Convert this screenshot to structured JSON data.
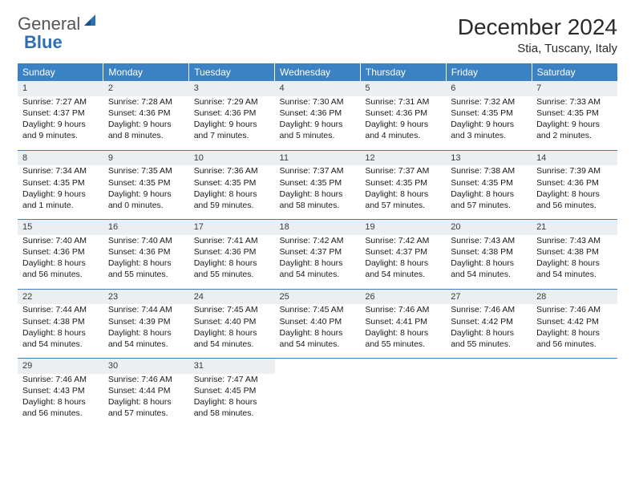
{
  "logo": {
    "text_gray": "General",
    "text_blue": "Blue"
  },
  "title": "December 2024",
  "location": "Stia, Tuscany, Italy",
  "colors": {
    "header_bg": "#3b82c4",
    "header_fg": "#ffffff",
    "daynum_bg": "#eceff1",
    "rule": "#3b82c4",
    "logo_gray": "#555555",
    "logo_blue": "#2e6fb4"
  },
  "font": {
    "body_size_pt": 10.5,
    "title_size_pt": 28
  },
  "day_headers": [
    "Sunday",
    "Monday",
    "Tuesday",
    "Wednesday",
    "Thursday",
    "Friday",
    "Saturday"
  ],
  "weeks": [
    [
      {
        "num": "1",
        "sunrise": "Sunrise: 7:27 AM",
        "sunset": "Sunset: 4:37 PM",
        "daylight": "Daylight: 9 hours and 9 minutes."
      },
      {
        "num": "2",
        "sunrise": "Sunrise: 7:28 AM",
        "sunset": "Sunset: 4:36 PM",
        "daylight": "Daylight: 9 hours and 8 minutes."
      },
      {
        "num": "3",
        "sunrise": "Sunrise: 7:29 AM",
        "sunset": "Sunset: 4:36 PM",
        "daylight": "Daylight: 9 hours and 7 minutes."
      },
      {
        "num": "4",
        "sunrise": "Sunrise: 7:30 AM",
        "sunset": "Sunset: 4:36 PM",
        "daylight": "Daylight: 9 hours and 5 minutes."
      },
      {
        "num": "5",
        "sunrise": "Sunrise: 7:31 AM",
        "sunset": "Sunset: 4:36 PM",
        "daylight": "Daylight: 9 hours and 4 minutes."
      },
      {
        "num": "6",
        "sunrise": "Sunrise: 7:32 AM",
        "sunset": "Sunset: 4:35 PM",
        "daylight": "Daylight: 9 hours and 3 minutes."
      },
      {
        "num": "7",
        "sunrise": "Sunrise: 7:33 AM",
        "sunset": "Sunset: 4:35 PM",
        "daylight": "Daylight: 9 hours and 2 minutes."
      }
    ],
    [
      {
        "num": "8",
        "sunrise": "Sunrise: 7:34 AM",
        "sunset": "Sunset: 4:35 PM",
        "daylight": "Daylight: 9 hours and 1 minute."
      },
      {
        "num": "9",
        "sunrise": "Sunrise: 7:35 AM",
        "sunset": "Sunset: 4:35 PM",
        "daylight": "Daylight: 9 hours and 0 minutes."
      },
      {
        "num": "10",
        "sunrise": "Sunrise: 7:36 AM",
        "sunset": "Sunset: 4:35 PM",
        "daylight": "Daylight: 8 hours and 59 minutes."
      },
      {
        "num": "11",
        "sunrise": "Sunrise: 7:37 AM",
        "sunset": "Sunset: 4:35 PM",
        "daylight": "Daylight: 8 hours and 58 minutes."
      },
      {
        "num": "12",
        "sunrise": "Sunrise: 7:37 AM",
        "sunset": "Sunset: 4:35 PM",
        "daylight": "Daylight: 8 hours and 57 minutes."
      },
      {
        "num": "13",
        "sunrise": "Sunrise: 7:38 AM",
        "sunset": "Sunset: 4:35 PM",
        "daylight": "Daylight: 8 hours and 57 minutes."
      },
      {
        "num": "14",
        "sunrise": "Sunrise: 7:39 AM",
        "sunset": "Sunset: 4:36 PM",
        "daylight": "Daylight: 8 hours and 56 minutes."
      }
    ],
    [
      {
        "num": "15",
        "sunrise": "Sunrise: 7:40 AM",
        "sunset": "Sunset: 4:36 PM",
        "daylight": "Daylight: 8 hours and 56 minutes."
      },
      {
        "num": "16",
        "sunrise": "Sunrise: 7:40 AM",
        "sunset": "Sunset: 4:36 PM",
        "daylight": "Daylight: 8 hours and 55 minutes."
      },
      {
        "num": "17",
        "sunrise": "Sunrise: 7:41 AM",
        "sunset": "Sunset: 4:36 PM",
        "daylight": "Daylight: 8 hours and 55 minutes."
      },
      {
        "num": "18",
        "sunrise": "Sunrise: 7:42 AM",
        "sunset": "Sunset: 4:37 PM",
        "daylight": "Daylight: 8 hours and 54 minutes."
      },
      {
        "num": "19",
        "sunrise": "Sunrise: 7:42 AM",
        "sunset": "Sunset: 4:37 PM",
        "daylight": "Daylight: 8 hours and 54 minutes."
      },
      {
        "num": "20",
        "sunrise": "Sunrise: 7:43 AM",
        "sunset": "Sunset: 4:38 PM",
        "daylight": "Daylight: 8 hours and 54 minutes."
      },
      {
        "num": "21",
        "sunrise": "Sunrise: 7:43 AM",
        "sunset": "Sunset: 4:38 PM",
        "daylight": "Daylight: 8 hours and 54 minutes."
      }
    ],
    [
      {
        "num": "22",
        "sunrise": "Sunrise: 7:44 AM",
        "sunset": "Sunset: 4:38 PM",
        "daylight": "Daylight: 8 hours and 54 minutes."
      },
      {
        "num": "23",
        "sunrise": "Sunrise: 7:44 AM",
        "sunset": "Sunset: 4:39 PM",
        "daylight": "Daylight: 8 hours and 54 minutes."
      },
      {
        "num": "24",
        "sunrise": "Sunrise: 7:45 AM",
        "sunset": "Sunset: 4:40 PM",
        "daylight": "Daylight: 8 hours and 54 minutes."
      },
      {
        "num": "25",
        "sunrise": "Sunrise: 7:45 AM",
        "sunset": "Sunset: 4:40 PM",
        "daylight": "Daylight: 8 hours and 54 minutes."
      },
      {
        "num": "26",
        "sunrise": "Sunrise: 7:46 AM",
        "sunset": "Sunset: 4:41 PM",
        "daylight": "Daylight: 8 hours and 55 minutes."
      },
      {
        "num": "27",
        "sunrise": "Sunrise: 7:46 AM",
        "sunset": "Sunset: 4:42 PM",
        "daylight": "Daylight: 8 hours and 55 minutes."
      },
      {
        "num": "28",
        "sunrise": "Sunrise: 7:46 AM",
        "sunset": "Sunset: 4:42 PM",
        "daylight": "Daylight: 8 hours and 56 minutes."
      }
    ],
    [
      {
        "num": "29",
        "sunrise": "Sunrise: 7:46 AM",
        "sunset": "Sunset: 4:43 PM",
        "daylight": "Daylight: 8 hours and 56 minutes."
      },
      {
        "num": "30",
        "sunrise": "Sunrise: 7:46 AM",
        "sunset": "Sunset: 4:44 PM",
        "daylight": "Daylight: 8 hours and 57 minutes."
      },
      {
        "num": "31",
        "sunrise": "Sunrise: 7:47 AM",
        "sunset": "Sunset: 4:45 PM",
        "daylight": "Daylight: 8 hours and 58 minutes."
      },
      null,
      null,
      null,
      null
    ]
  ]
}
